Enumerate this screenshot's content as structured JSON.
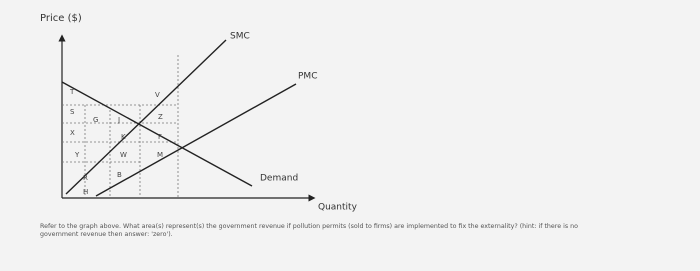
{
  "axes": {
    "y_label": "Price ($)",
    "x_label": "Quantity"
  },
  "curves": {
    "smc": "SMC",
    "pmc": "PMC",
    "demand": "Demand"
  },
  "regions": [
    "T",
    "S",
    "X",
    "Y",
    "R",
    "H",
    "G",
    "J",
    "K",
    "W",
    "B",
    "V",
    "Z",
    "F",
    "M"
  ],
  "question": [
    "Refer to the graph above. What area(s) represent(s) the government revenue if pollution permits (sold to firms) are implemented to fix the externality? (hint: if there is no",
    "government revenue then answer: 'zero')."
  ]
}
